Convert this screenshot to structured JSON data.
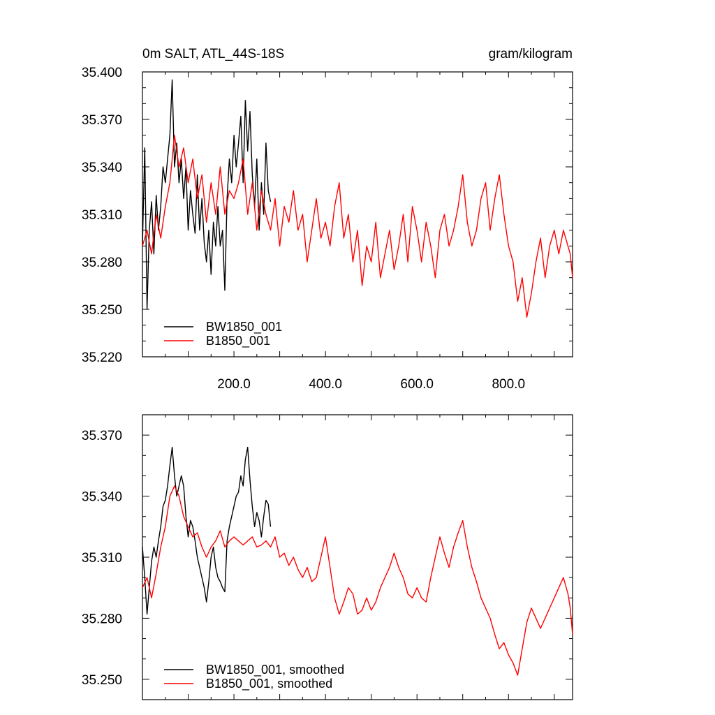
{
  "colors": {
    "series_1": "#000000",
    "series_2": "#ff0000"
  },
  "chart_data": [
    {
      "type": "line",
      "title": "0m SALT, ATL_44S-18S",
      "units": "gram/kilogram",
      "xlim": [
        0,
        940
      ],
      "ylim": [
        35.22,
        35.4
      ],
      "x_tick_labels": [
        {
          "x": 200,
          "label": "200.0"
        },
        {
          "x": 400,
          "label": "400.0"
        },
        {
          "x": 600,
          "label": "600.0"
        },
        {
          "x": 800,
          "label": "800.0"
        }
      ],
      "y_tick_labels": [
        {
          "y": 35.4,
          "label": "35.400"
        },
        {
          "y": 35.37,
          "label": "35.370"
        },
        {
          "y": 35.34,
          "label": "35.340"
        },
        {
          "y": 35.31,
          "label": "35.310"
        },
        {
          "y": 35.28,
          "label": "35.280"
        },
        {
          "y": 35.25,
          "label": "35.250"
        },
        {
          "y": 35.22,
          "label": "35.220"
        }
      ],
      "legend_position": "bottom-left",
      "series": [
        {
          "name": "BW1850_001",
          "color": "#000000",
          "x": [
            0,
            5,
            10,
            15,
            20,
            25,
            30,
            35,
            40,
            45,
            50,
            55,
            60,
            65,
            70,
            75,
            80,
            85,
            90,
            95,
            100,
            105,
            110,
            115,
            120,
            125,
            130,
            135,
            140,
            145,
            150,
            155,
            160,
            165,
            170,
            175,
            180,
            185,
            190,
            195,
            200,
            205,
            210,
            215,
            220,
            225,
            230,
            235,
            240,
            245,
            250,
            255,
            260,
            265,
            270,
            275,
            280
          ],
          "values": [
            35.29,
            35.352,
            35.25,
            35.3,
            35.318,
            35.285,
            35.322,
            35.3,
            35.315,
            35.34,
            35.33,
            35.345,
            35.36,
            35.395,
            35.34,
            35.355,
            35.33,
            35.345,
            35.32,
            35.34,
            35.3,
            35.325,
            35.31,
            35.298,
            35.335,
            35.3,
            35.32,
            35.292,
            35.28,
            35.3,
            35.272,
            35.305,
            35.29,
            35.315,
            35.29,
            35.3,
            35.262,
            35.32,
            35.345,
            35.33,
            35.36,
            35.34,
            35.355,
            35.372,
            35.33,
            35.382,
            35.35,
            35.375,
            35.335,
            35.315,
            35.345,
            35.3,
            35.33,
            35.31,
            35.355,
            35.325,
            35.318
          ]
        },
        {
          "name": "B1850_001",
          "color": "#ff0000",
          "x": [
            0,
            10,
            20,
            30,
            40,
            50,
            60,
            70,
            80,
            90,
            100,
            110,
            120,
            130,
            140,
            150,
            160,
            170,
            180,
            190,
            200,
            210,
            220,
            230,
            240,
            250,
            260,
            270,
            280,
            290,
            300,
            310,
            320,
            330,
            340,
            350,
            360,
            370,
            380,
            390,
            400,
            410,
            420,
            430,
            440,
            450,
            460,
            470,
            480,
            490,
            500,
            510,
            520,
            530,
            540,
            550,
            560,
            570,
            580,
            590,
            600,
            610,
            620,
            630,
            640,
            650,
            660,
            670,
            680,
            690,
            700,
            710,
            720,
            730,
            740,
            750,
            760,
            770,
            780,
            790,
            800,
            810,
            820,
            830,
            840,
            850,
            860,
            870,
            880,
            890,
            900,
            910,
            920,
            930,
            935,
            940
          ],
          "values": [
            35.29,
            35.3,
            35.285,
            35.31,
            35.295,
            35.315,
            35.33,
            35.36,
            35.34,
            35.352,
            35.33,
            35.345,
            35.32,
            35.335,
            35.305,
            35.33,
            35.31,
            35.34,
            35.31,
            35.325,
            35.32,
            35.33,
            35.345,
            35.31,
            35.33,
            35.3,
            35.325,
            35.31,
            35.3,
            35.32,
            35.29,
            35.315,
            35.305,
            35.325,
            35.3,
            35.31,
            35.28,
            35.3,
            35.32,
            35.295,
            35.305,
            35.29,
            35.315,
            35.33,
            35.295,
            35.31,
            35.28,
            35.3,
            35.265,
            35.29,
            35.28,
            35.305,
            35.27,
            35.285,
            35.3,
            35.275,
            35.29,
            35.31,
            35.28,
            35.315,
            35.3,
            35.28,
            35.305,
            35.29,
            35.27,
            35.3,
            35.31,
            35.29,
            35.3,
            35.315,
            35.335,
            35.305,
            35.29,
            35.3,
            35.32,
            35.33,
            35.3,
            35.32,
            35.335,
            35.31,
            35.29,
            35.28,
            35.255,
            35.27,
            35.245,
            35.26,
            35.28,
            35.295,
            35.27,
            35.29,
            35.3,
            35.285,
            35.3,
            35.29,
            35.285,
            35.27
          ]
        }
      ]
    },
    {
      "type": "line",
      "xlim": [
        0,
        940
      ],
      "ylim": [
        35.24,
        35.38
      ],
      "y_tick_labels": [
        {
          "y": 35.37,
          "label": "35.370"
        },
        {
          "y": 35.34,
          "label": "35.340"
        },
        {
          "y": 35.31,
          "label": "35.310"
        },
        {
          "y": 35.28,
          "label": "35.280"
        },
        {
          "y": 35.25,
          "label": "35.250"
        }
      ],
      "legend_position": "bottom-left",
      "series": [
        {
          "name": "BW1850_001, smoothed",
          "color": "#000000",
          "x": [
            0,
            5,
            10,
            15,
            20,
            25,
            30,
            35,
            40,
            45,
            50,
            55,
            60,
            65,
            70,
            75,
            80,
            85,
            90,
            95,
            100,
            105,
            110,
            115,
            120,
            125,
            130,
            135,
            140,
            145,
            150,
            155,
            160,
            165,
            170,
            175,
            180,
            185,
            190,
            195,
            200,
            205,
            210,
            215,
            220,
            225,
            230,
            235,
            240,
            245,
            250,
            255,
            260,
            265,
            270,
            275,
            280
          ],
          "values": [
            35.315,
            35.3,
            35.282,
            35.295,
            35.308,
            35.315,
            35.31,
            35.318,
            35.325,
            35.335,
            35.338,
            35.345,
            35.355,
            35.364,
            35.35,
            35.34,
            35.345,
            35.35,
            35.345,
            35.33,
            35.32,
            35.328,
            35.325,
            35.318,
            35.31,
            35.305,
            35.3,
            35.295,
            35.288,
            35.298,
            35.31,
            35.315,
            35.305,
            35.3,
            35.298,
            35.295,
            35.293,
            35.318,
            35.325,
            35.33,
            35.335,
            35.34,
            35.342,
            35.35,
            35.345,
            35.358,
            35.364,
            35.348,
            35.335,
            35.325,
            35.332,
            35.328,
            35.32,
            35.33,
            35.338,
            35.336,
            35.325
          ]
        },
        {
          "name": "B1850_001, smoothed",
          "color": "#ff0000",
          "x": [
            0,
            10,
            20,
            30,
            40,
            50,
            60,
            70,
            80,
            90,
            100,
            110,
            120,
            130,
            140,
            150,
            160,
            170,
            180,
            190,
            200,
            210,
            220,
            230,
            240,
            250,
            260,
            270,
            280,
            290,
            300,
            310,
            320,
            330,
            340,
            350,
            360,
            370,
            380,
            390,
            400,
            410,
            420,
            430,
            440,
            450,
            460,
            470,
            480,
            490,
            500,
            510,
            520,
            530,
            540,
            550,
            560,
            570,
            580,
            590,
            600,
            610,
            620,
            630,
            640,
            650,
            660,
            670,
            680,
            690,
            700,
            710,
            720,
            730,
            740,
            750,
            760,
            770,
            780,
            790,
            800,
            810,
            820,
            830,
            840,
            850,
            860,
            870,
            880,
            890,
            900,
            910,
            920,
            930,
            935,
            940
          ],
          "values": [
            35.295,
            35.3,
            35.29,
            35.302,
            35.315,
            35.325,
            35.34,
            35.345,
            35.34,
            35.33,
            35.325,
            35.32,
            35.322,
            35.315,
            35.31,
            35.315,
            35.318,
            35.323,
            35.315,
            35.318,
            35.32,
            35.318,
            35.316,
            35.318,
            35.32,
            35.315,
            35.316,
            35.318,
            35.315,
            35.32,
            35.31,
            35.312,
            35.306,
            35.31,
            35.304,
            35.3,
            35.305,
            35.298,
            35.3,
            35.31,
            35.32,
            35.305,
            35.29,
            35.282,
            35.288,
            35.295,
            35.292,
            35.282,
            35.284,
            35.29,
            35.284,
            35.288,
            35.295,
            35.3,
            35.305,
            35.312,
            35.305,
            35.3,
            35.292,
            35.29,
            35.295,
            35.29,
            35.288,
            35.3,
            35.31,
            35.32,
            35.312,
            35.305,
            35.315,
            35.322,
            35.328,
            35.315,
            35.305,
            35.298,
            35.29,
            35.285,
            35.28,
            35.272,
            35.265,
            35.268,
            35.262,
            35.258,
            35.252,
            35.265,
            35.278,
            35.285,
            35.28,
            35.275,
            35.28,
            35.285,
            35.29,
            35.295,
            35.3,
            35.292,
            35.285,
            35.272
          ]
        }
      ]
    }
  ]
}
